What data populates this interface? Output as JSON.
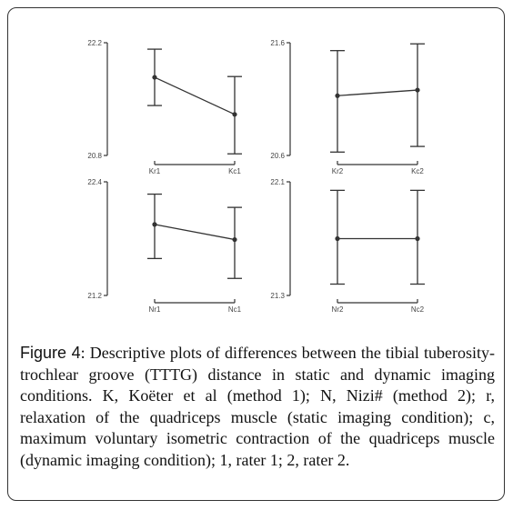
{
  "figure": {
    "caption_label": "Figure 4",
    "caption_text": ": Descriptive plots of differences between the tibial tuberosity-trochlear groove (TTTG) distance in static and dynamic imaging conditions. K, Koëter et al (method 1); N, Nizi# (method 2); r, relaxation of the quadriceps muscle (static imaging condition); c, maximum voluntary isometric contraction of the quadriceps muscle (dynamic imaging condition); 1, rater 1; 2, rater 2."
  },
  "colors": {
    "line": "#333333",
    "text": "#111111",
    "frame": "#333333"
  },
  "chart_data": [
    {
      "type": "error-bar-line",
      "categories": [
        "Kr1",
        "Kc1"
      ],
      "ylim": [
        20.8,
        22.2
      ],
      "yticks": [
        20.8,
        22.2
      ],
      "mean": [
        21.77,
        21.31
      ],
      "upper": [
        22.12,
        21.78
      ],
      "lower": [
        21.42,
        20.82
      ]
    },
    {
      "type": "error-bar-line",
      "categories": [
        "Kr2",
        "Kc2"
      ],
      "ylim": [
        20.6,
        21.6
      ],
      "yticks": [
        20.6,
        21.6
      ],
      "mean": [
        21.13,
        21.18
      ],
      "upper": [
        21.53,
        21.59
      ],
      "lower": [
        20.63,
        20.68
      ]
    },
    {
      "type": "error-bar-line",
      "categories": [
        "Nr1",
        "Nc1"
      ],
      "ylim": [
        21.2,
        22.4
      ],
      "yticks": [
        21.2,
        22.4
      ],
      "mean": [
        21.95,
        21.79
      ],
      "upper": [
        22.27,
        22.13
      ],
      "lower": [
        21.59,
        21.38
      ]
    },
    {
      "type": "error-bar-line",
      "categories": [
        "Nr2",
        "Nc2"
      ],
      "ylim": [
        21.3,
        22.1
      ],
      "yticks": [
        21.3,
        22.1
      ],
      "mean": [
        21.7,
        21.7
      ],
      "upper": [
        22.04,
        22.04
      ],
      "lower": [
        21.38,
        21.38
      ]
    }
  ]
}
